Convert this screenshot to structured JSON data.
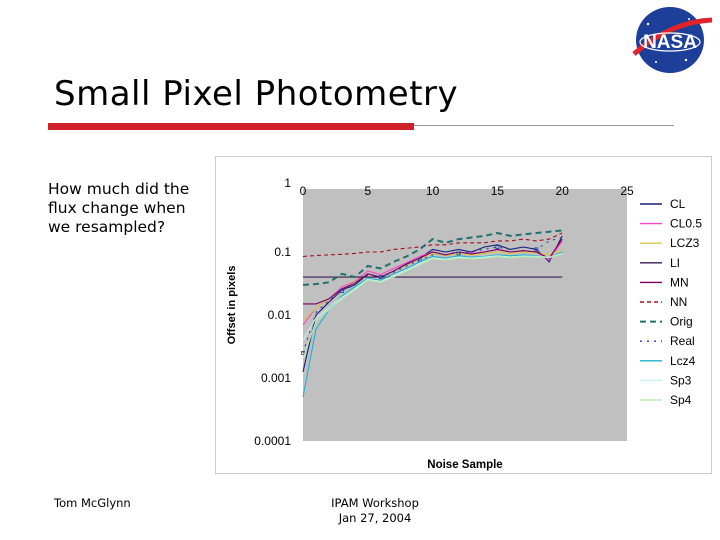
{
  "slide": {
    "title": "Small Pixel Photometry",
    "question": "How much did the flux change when we resampled?",
    "footer_left": "Tom McGlynn",
    "footer_mid_line1": "IPAM Workshop",
    "footer_mid_line2": "Jan 27, 2004",
    "logo_text": "NASA",
    "accent_color": "#d0202a"
  },
  "chart_data": {
    "type": "line",
    "title": "",
    "xlabel": "Noise Sample",
    "ylabel": "Offset in pixels",
    "xlim": [
      0,
      25
    ],
    "ylim": [
      0.0001,
      1
    ],
    "yscale": "log",
    "x_ticks": [
      "0",
      "5",
      "10",
      "15",
      "20",
      "25"
    ],
    "y_ticks": [
      "1",
      "0.1",
      "0.01",
      "0.001",
      "0.0001"
    ],
    "grid": false,
    "legend_position": "right",
    "x": [
      0,
      1,
      2,
      3,
      4,
      5,
      6,
      7,
      8,
      9,
      10,
      11,
      12,
      13,
      14,
      15,
      16,
      17,
      18,
      19,
      20
    ],
    "series": [
      {
        "name": "CL",
        "color": "#1a1a7a",
        "dash": "",
        "values": [
          0.00125,
          0.01,
          0.016,
          0.025,
          0.03,
          0.045,
          0.04,
          0.05,
          0.065,
          0.08,
          0.11,
          0.1,
          0.11,
          0.1,
          0.12,
          0.13,
          0.11,
          0.12,
          0.11,
          0.07,
          0.18
        ]
      },
      {
        "name": "CL0.5",
        "color": "#ff44cc",
        "dash": "",
        "values": [
          0.007,
          0.013,
          0.018,
          0.028,
          0.034,
          0.05,
          0.044,
          0.055,
          0.068,
          0.085,
          0.1,
          0.09,
          0.1,
          0.095,
          0.1,
          0.11,
          0.1,
          0.105,
          0.1,
          0.075,
          0.15
        ]
      },
      {
        "name": "LCZ3",
        "color": "#d8c840",
        "dash": "",
        "values": [
          0.008,
          0.013,
          0.018,
          0.026,
          0.033,
          0.045,
          0.04,
          0.05,
          0.062,
          0.078,
          0.095,
          0.088,
          0.095,
          0.09,
          0.095,
          0.1,
          0.095,
          0.1,
          0.097,
          0.09,
          0.11
        ]
      },
      {
        "name": "LI",
        "color": "#3a1a50",
        "dash": "",
        "values": [
          0.04,
          0.04,
          0.04,
          0.04,
          0.04,
          0.04,
          0.04,
          0.04,
          0.04,
          0.04,
          0.04,
          0.04,
          0.04,
          0.04,
          0.04,
          0.04,
          0.04,
          0.04,
          0.04,
          0.04,
          0.04
        ]
      },
      {
        "name": "MN",
        "color": "#7a0060",
        "dash": "",
        "values": [
          0.015,
          0.015,
          0.018,
          0.026,
          0.032,
          0.045,
          0.04,
          0.05,
          0.064,
          0.08,
          0.1,
          0.09,
          0.1,
          0.093,
          0.1,
          0.11,
          0.1,
          0.105,
          0.1,
          0.08,
          0.16
        ]
      },
      {
        "name": "NN",
        "color": "#a01020",
        "dash": "4 3",
        "values": [
          0.085,
          0.088,
          0.09,
          0.092,
          0.095,
          0.1,
          0.1,
          0.11,
          0.115,
          0.12,
          0.13,
          0.13,
          0.14,
          0.14,
          0.14,
          0.15,
          0.15,
          0.16,
          0.15,
          0.16,
          0.2
        ]
      },
      {
        "name": "Orig",
        "color": "#207070",
        "dash": "6 4",
        "values": [
          0.03,
          0.031,
          0.033,
          0.045,
          0.04,
          0.06,
          0.055,
          0.07,
          0.085,
          0.11,
          0.16,
          0.14,
          0.16,
          0.17,
          0.18,
          0.2,
          0.18,
          0.19,
          0.2,
          0.21,
          0.22
        ]
      },
      {
        "name": "Real",
        "color": "#2040a0",
        "dash": "2 5",
        "values": [
          0.0025,
          0.011,
          0.017,
          0.024,
          0.03,
          0.043,
          0.04,
          0.048,
          0.06,
          0.075,
          0.09,
          0.1,
          0.095,
          0.1,
          0.11,
          0.12,
          0.11,
          0.12,
          0.11,
          0.15,
          0.17
        ]
      },
      {
        "name": "Lcz4",
        "color": "#20b0d0",
        "dash": "",
        "values": [
          0.0005,
          0.006,
          0.012,
          0.02,
          0.028,
          0.038,
          0.036,
          0.045,
          0.055,
          0.07,
          0.085,
          0.08,
          0.087,
          0.083,
          0.085,
          0.09,
          0.087,
          0.09,
          0.087,
          0.082,
          0.1
        ]
      },
      {
        "name": "Sp3",
        "color": "#c8f0f0",
        "dash": "",
        "values": [
          0.004,
          0.009,
          0.013,
          0.019,
          0.026,
          0.037,
          0.034,
          0.042,
          0.052,
          0.065,
          0.08,
          0.077,
          0.083,
          0.08,
          0.083,
          0.087,
          0.083,
          0.086,
          0.085,
          0.083,
          0.095
        ]
      },
      {
        "name": "Sp4",
        "color": "#b0f0b0",
        "dash": "",
        "values": [
          0.002,
          0.008,
          0.012,
          0.018,
          0.025,
          0.036,
          0.033,
          0.04,
          0.05,
          0.063,
          0.078,
          0.075,
          0.08,
          0.078,
          0.08,
          0.085,
          0.081,
          0.085,
          0.083,
          0.082,
          0.093
        ]
      }
    ]
  }
}
